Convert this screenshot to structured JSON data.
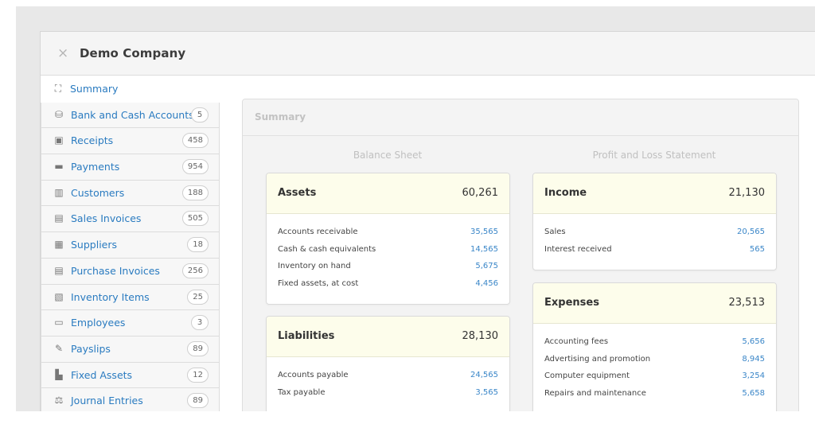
{
  "window": {
    "title": "Demo Company",
    "close_icon": "×"
  },
  "sidebar": {
    "items": [
      {
        "label": "Summary",
        "icon": "presentation-icon",
        "glyph": "⛶",
        "badge": null
      },
      {
        "label": "Bank and Cash Accounts",
        "icon": "coins-icon",
        "glyph": "⛁",
        "badge": "5"
      },
      {
        "label": "Receipts",
        "icon": "plus-square-icon",
        "glyph": "▣",
        "badge": "458"
      },
      {
        "label": "Payments",
        "icon": "minus-square-icon",
        "glyph": "▬",
        "badge": "954"
      },
      {
        "label": "Customers",
        "icon": "customers-icon",
        "glyph": "▥",
        "badge": "188"
      },
      {
        "label": "Sales Invoices",
        "icon": "document-icon",
        "glyph": "▤",
        "badge": "505"
      },
      {
        "label": "Suppliers",
        "icon": "building-icon",
        "glyph": "▦",
        "badge": "18"
      },
      {
        "label": "Purchase Invoices",
        "icon": "document-icon",
        "glyph": "▤",
        "badge": "256"
      },
      {
        "label": "Inventory Items",
        "icon": "boxes-icon",
        "glyph": "▧",
        "badge": "25"
      },
      {
        "label": "Employees",
        "icon": "id-card-icon",
        "glyph": "▭",
        "badge": "3"
      },
      {
        "label": "Payslips",
        "icon": "pen-card-icon",
        "glyph": "✎",
        "badge": "89"
      },
      {
        "label": "Fixed Assets",
        "icon": "factory-icon",
        "glyph": "▙",
        "badge": "12"
      },
      {
        "label": "Journal Entries",
        "icon": "scale-icon",
        "glyph": "⚖",
        "badge": "89"
      }
    ]
  },
  "main": {
    "panel_title": "Summary",
    "balance_sheet_title": "Balance Sheet",
    "pl_title": "Profit and Loss Statement",
    "assets": {
      "name": "Assets",
      "total": "60,261",
      "rows": [
        {
          "label": "Accounts receivable",
          "value": "35,565"
        },
        {
          "label": "Cash & cash equivalents",
          "value": "14,565"
        },
        {
          "label": "Inventory on hand",
          "value": "5,675"
        },
        {
          "label": "Fixed assets, at cost",
          "value": "4,456"
        }
      ]
    },
    "liabilities": {
      "name": "Liabilities",
      "total": "28,130",
      "rows": [
        {
          "label": "Accounts payable",
          "value": "24,565"
        },
        {
          "label": "Tax payable",
          "value": "3,565"
        }
      ]
    },
    "income": {
      "name": "Income",
      "total": "21,130",
      "rows": [
        {
          "label": "Sales",
          "value": "20,565"
        },
        {
          "label": "Interest received",
          "value": "565"
        }
      ]
    },
    "expenses": {
      "name": "Expenses",
      "total": "23,513",
      "rows": [
        {
          "label": "Accounting fees",
          "value": "5,656"
        },
        {
          "label": "Advertising and promotion",
          "value": "8,945"
        },
        {
          "label": "Computer equipment",
          "value": "3,254"
        },
        {
          "label": "Repairs and maintenance",
          "value": "5,658"
        }
      ]
    }
  },
  "colors": {
    "link": "#2a7bc0",
    "value": "#3a86c8",
    "card_header": "#fdfdeb"
  }
}
